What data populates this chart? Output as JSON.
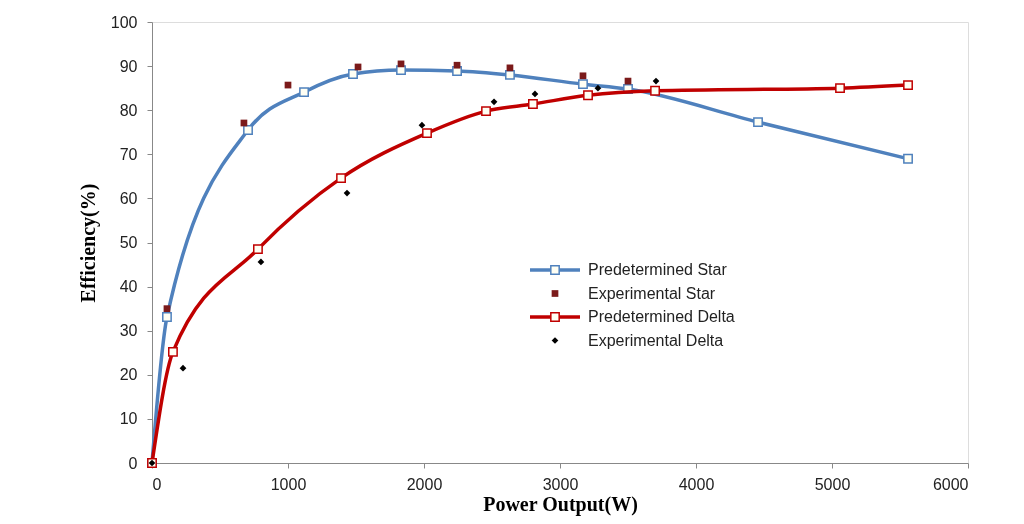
{
  "chart_data": {
    "type": "line",
    "xlabel": "Power Output(W)",
    "ylabel": "Efficiency(%)",
    "xlim": [
      0,
      6000
    ],
    "xticks": [
      0,
      1000,
      2000,
      3000,
      4000,
      5000,
      6000
    ],
    "ylim": [
      0,
      100
    ],
    "yticks": [
      0,
      10,
      20,
      30,
      40,
      50,
      60,
      70,
      80,
      90,
      100
    ],
    "grid": false,
    "legend": "right",
    "series": [
      {
        "name": "Predetermined Star",
        "type": "line",
        "marker": "square",
        "color": "#4f81bd",
        "x": [
          0,
          110,
          706,
          1118,
          1478,
          1831,
          2243,
          2632,
          3169,
          3500,
          4456,
          5559
        ],
        "values": [
          0,
          33.1,
          75.5,
          84.1,
          88.2,
          89.1,
          88.9,
          88.0,
          85.9,
          84.8,
          77.3,
          69.0
        ]
      },
      {
        "name": "Experimental Star",
        "type": "scatter",
        "marker": "square",
        "color": "#7b1a1a",
        "x": [
          110,
          676,
          1000,
          1515,
          1831,
          2243,
          2632,
          3169,
          3500
        ],
        "values": [
          35.0,
          77.1,
          85.7,
          89.8,
          90.5,
          90.2,
          89.6,
          87.8,
          86.6
        ]
      },
      {
        "name": "Predetermined Delta",
        "type": "line",
        "marker": "square",
        "color": "#c00000",
        "x": [
          0,
          154,
          779,
          1390,
          2022,
          2456,
          2801,
          3206,
          3699,
          5059,
          5559
        ],
        "values": [
          0,
          25.2,
          48.5,
          64.6,
          74.8,
          79.8,
          81.4,
          83.4,
          84.4,
          85.0,
          85.7
        ]
      },
      {
        "name": "Experimental Delta",
        "type": "scatter",
        "marker": "diamond",
        "color": "#000000",
        "x": [
          0,
          228,
          801,
          1434,
          1985,
          2515,
          2816,
          3279,
          3706
        ],
        "values": [
          0,
          21.5,
          45.6,
          61.2,
          76.6,
          81.9,
          83.7,
          85.0,
          86.6
        ]
      }
    ]
  }
}
